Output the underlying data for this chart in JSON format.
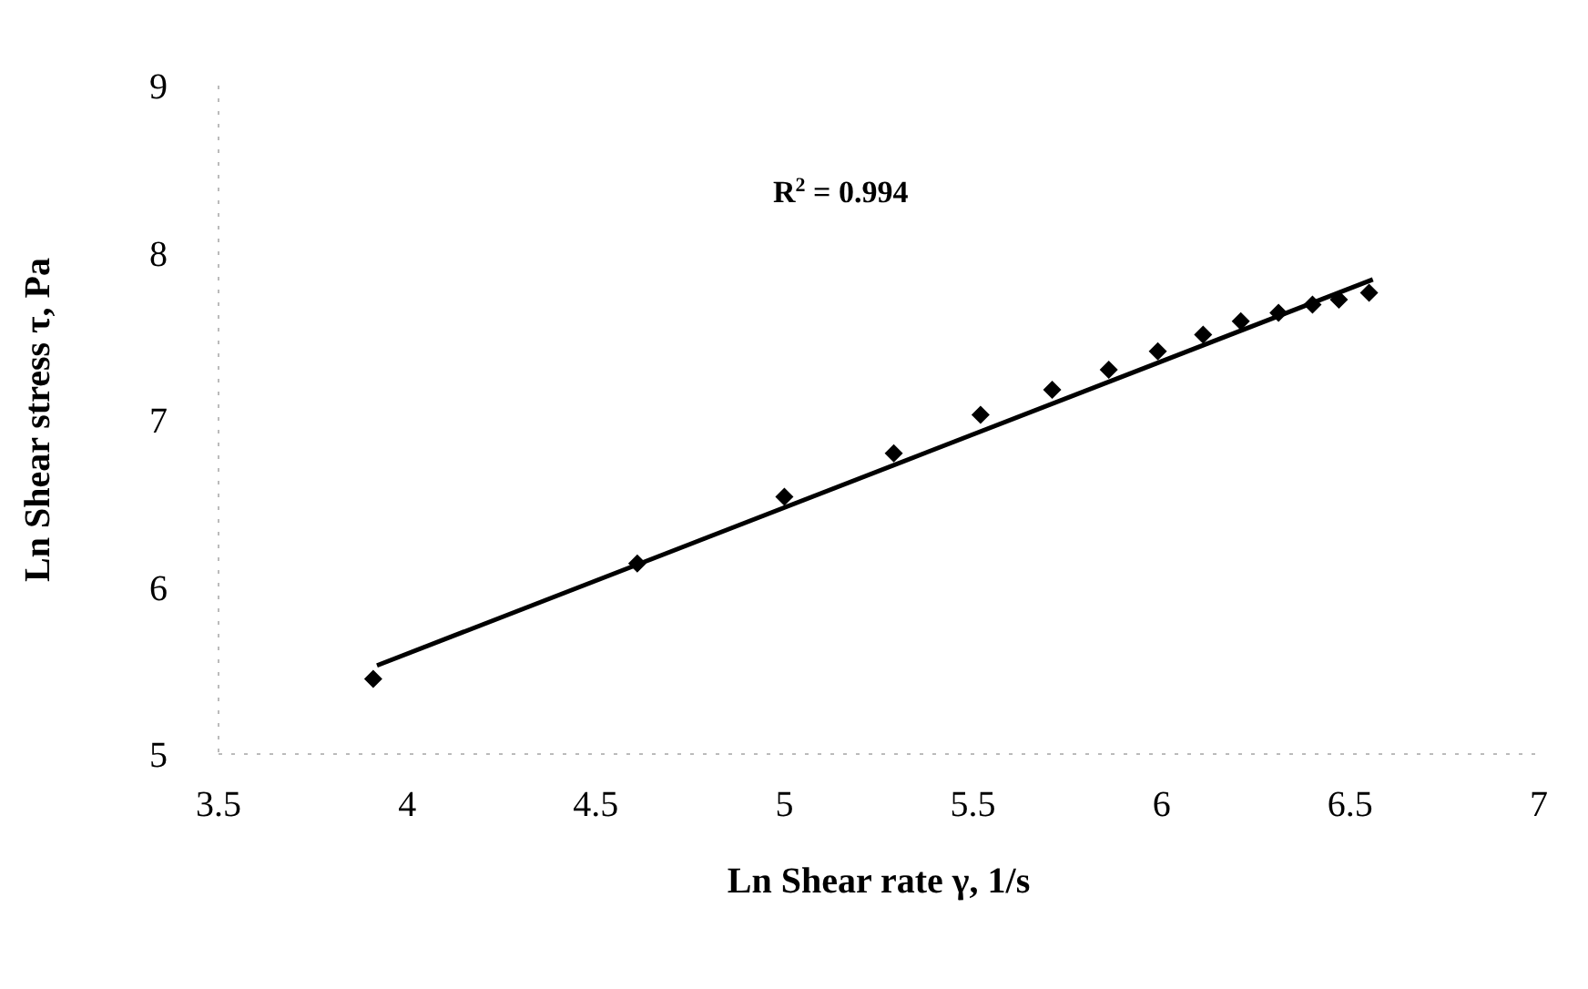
{
  "chart_data": {
    "type": "scatter",
    "xlabel": "Ln Shear rate γ, 1/s",
    "ylabel": "Ln Shear stress τ, Pa",
    "annotations": [
      "R$^{2}$ = 0.994"
    ],
    "xlim": [
      3.5,
      7
    ],
    "xticks": [
      3.5,
      4,
      4.5,
      5,
      5.5,
      6,
      6.5,
      7
    ],
    "ylim": [
      5,
      9
    ],
    "yticks": [
      5,
      6,
      7,
      8,
      9
    ],
    "grid": false,
    "legend": false,
    "marker": "diamond",
    "series": [
      {
        "color": "#000000",
        "x": [
          3.91,
          4.61,
          5.0,
          5.29,
          5.52,
          5.71,
          5.86,
          5.99,
          6.11,
          6.21,
          6.31,
          6.4,
          6.47,
          6.55
        ],
        "values": [
          5.45,
          6.14,
          6.54,
          6.8,
          7.03,
          7.18,
          7.3,
          7.41,
          7.51,
          7.59,
          7.64,
          7.69,
          7.72,
          7.76
        ]
      },
      {
        "type": "line",
        "color": "#000000",
        "marker": "none",
        "line_style": "solid",
        "x": [
          3.92,
          6.56
        ],
        "values": [
          5.53,
          7.84
        ]
      }
    ]
  }
}
